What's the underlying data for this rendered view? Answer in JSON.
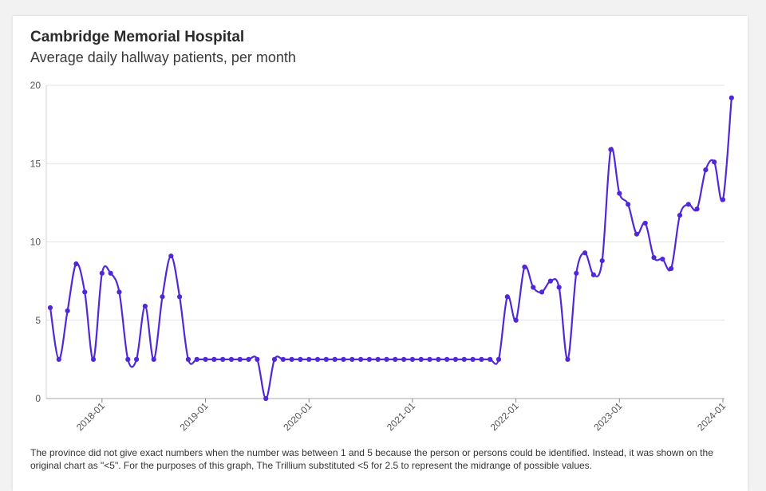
{
  "header": {
    "title": "Cambridge Memorial Hospital",
    "subtitle": "Average daily hallway patients, per month"
  },
  "footnote": "The province did not give exact numbers when the number was between 1 and 5 because the person or persons could be identified. Instead, it was shown on the original chart as \"<5\". For the purposes of this graph, The Trillium substituted <5 for 2.5 to represent the midrange of possible values.",
  "colors": {
    "line": "#5128d8",
    "grid": "#e4e4e4",
    "axis": "#555555"
  },
  "chart_data": {
    "type": "line",
    "title": "Cambridge Memorial Hospital",
    "subtitle": "Average daily hallway patients, per month",
    "xlabel": "",
    "ylabel": "",
    "ylim": [
      0,
      20
    ],
    "yticks": [
      "0",
      "5",
      "10",
      "15",
      "20"
    ],
    "xticks": [
      "2018-01",
      "2019-01",
      "2020-01",
      "2021-01",
      "2022-01",
      "2023-01",
      "2024-01"
    ],
    "x_start": "2017-07",
    "x_end": "2024-01",
    "grid": "horizontal",
    "series": [
      {
        "values": [
          5.8,
          2.5,
          5.6,
          8.6,
          6.8,
          2.5,
          8.0,
          8.0,
          6.8,
          2.5,
          2.5,
          5.9,
          2.5,
          6.5,
          9.1,
          6.5,
          2.5,
          2.5,
          2.5,
          2.5,
          2.5,
          2.5,
          2.5,
          2.5,
          2.5,
          0.0,
          2.5,
          2.5,
          2.5,
          2.5,
          2.5,
          2.5,
          2.5,
          2.5,
          2.5,
          2.5,
          2.5,
          2.5,
          2.5,
          2.5,
          2.5,
          2.5,
          2.5,
          2.5,
          2.5,
          2.5,
          2.5,
          2.5,
          2.5,
          2.5,
          2.5,
          2.5,
          2.5,
          6.5,
          5.0,
          8.4,
          7.1,
          6.8,
          7.5,
          7.1,
          2.5,
          8.0,
          9.3,
          7.9,
          8.8,
          15.9,
          13.1,
          12.4,
          10.5,
          11.2,
          9.0,
          8.9,
          8.3,
          11.7,
          12.4,
          12.1,
          14.6,
          15.1,
          12.7,
          19.2
        ]
      }
    ]
  }
}
